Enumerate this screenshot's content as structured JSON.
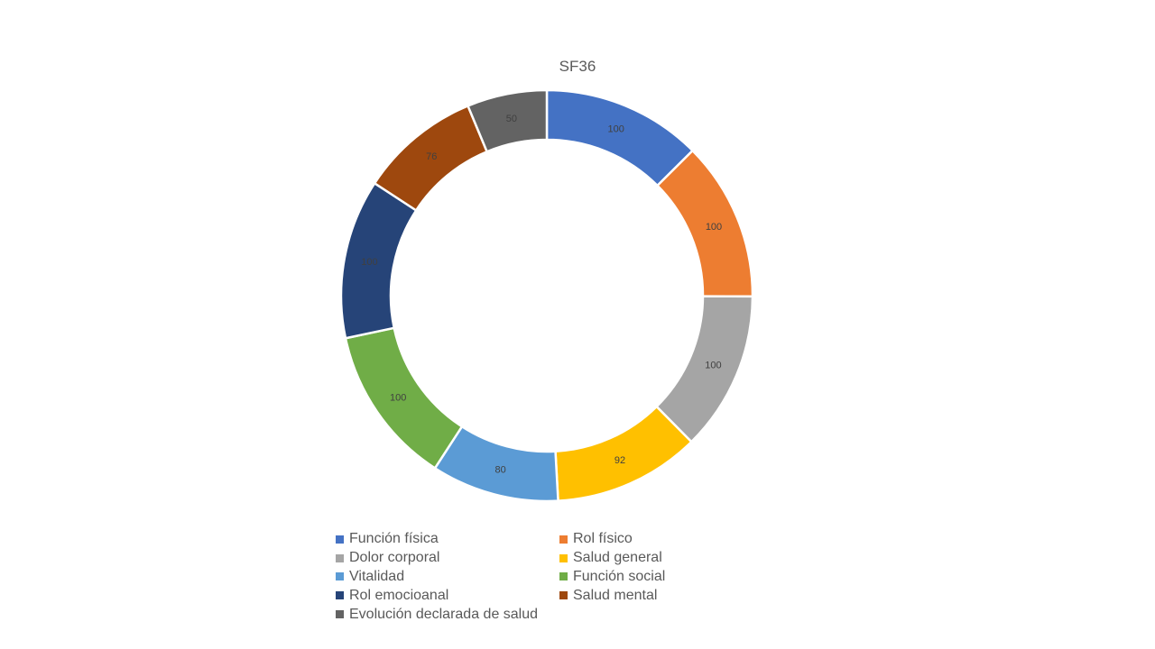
{
  "chart_data": {
    "type": "pie",
    "variant": "doughnut",
    "title": "SF36",
    "categories": [
      "Función física",
      "Rol físico",
      "Dolor corporal",
      "Salud general",
      "Vitalidad",
      "Función social",
      "Rol emocioanal",
      "Salud mental",
      "Evolución declarada de salud"
    ],
    "values": [
      100,
      100,
      100,
      92,
      80,
      100,
      100,
      76,
      50
    ],
    "colors": [
      "#4472C4",
      "#ED7D31",
      "#A5A5A5",
      "#FFC000",
      "#5B9BD5",
      "#70AD47",
      "#264478",
      "#9E480E",
      "#636363"
    ],
    "data_labels": [
      "100",
      "100",
      "100",
      "92",
      "80",
      "100",
      "100",
      "76",
      "50"
    ],
    "legend_position": "bottom",
    "start_angle": "top, clockwise"
  }
}
